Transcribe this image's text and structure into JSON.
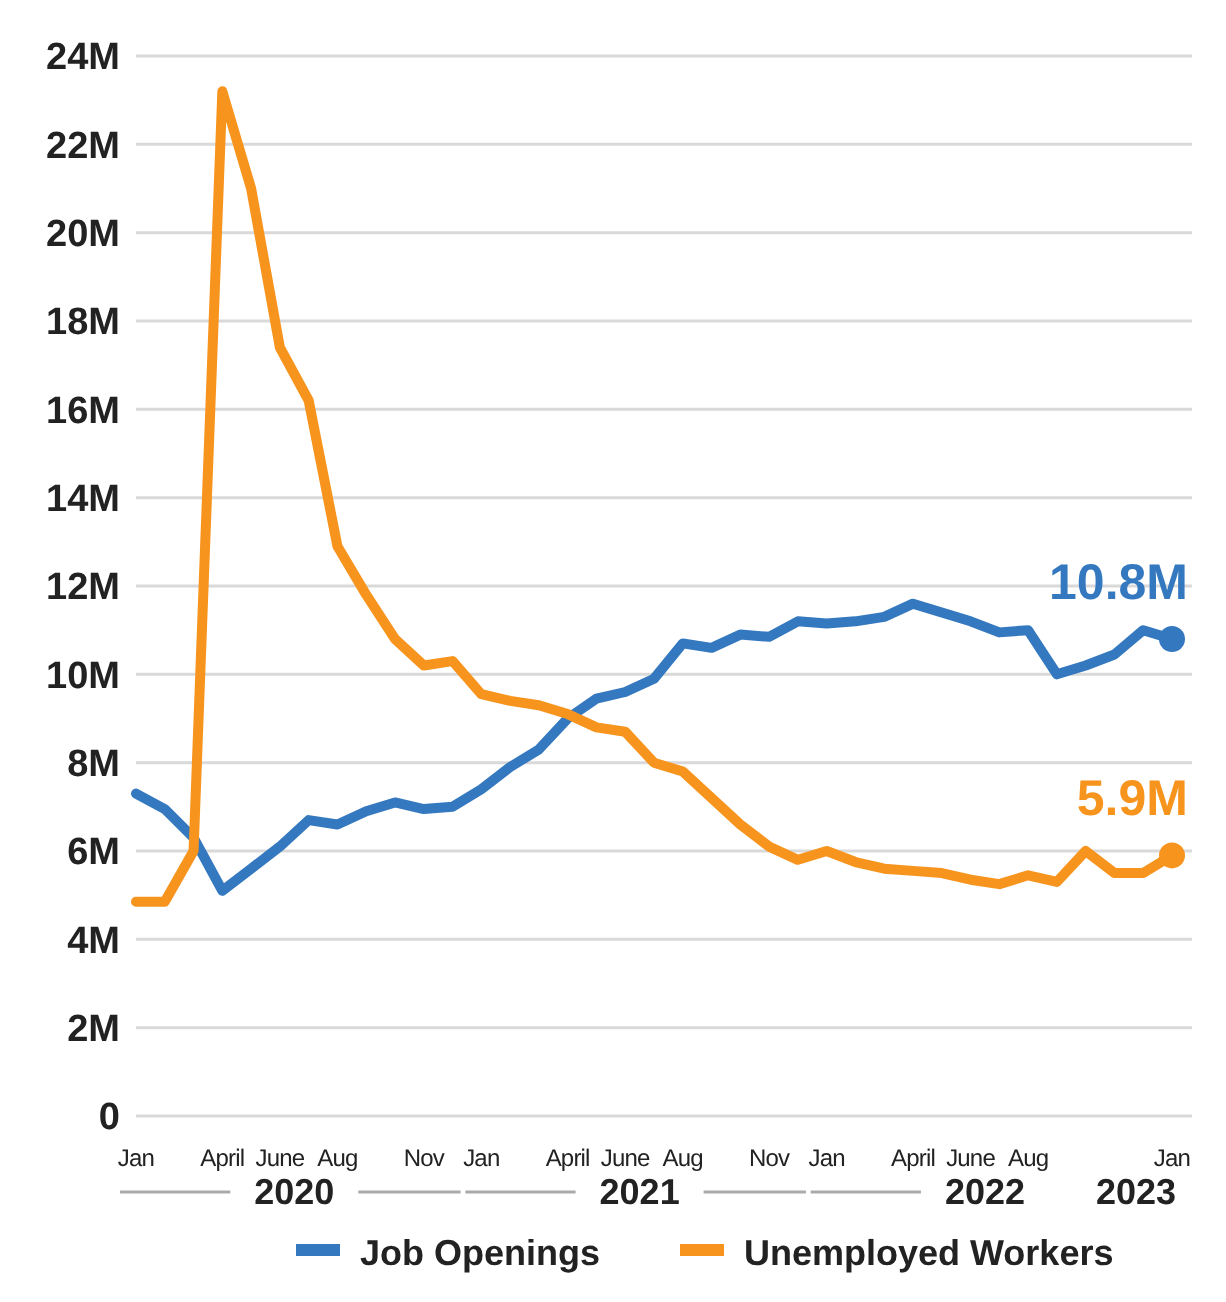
{
  "chart_data": {
    "type": "line",
    "categories": [
      "Jan",
      null,
      null,
      "April",
      null,
      "June",
      null,
      "Aug",
      null,
      null,
      "Nov",
      null,
      "Jan",
      null,
      null,
      "April",
      null,
      "June",
      null,
      "Aug",
      null,
      null,
      "Nov",
      null,
      "Jan",
      null,
      null,
      "April",
      null,
      "June",
      null,
      "Aug",
      null,
      null,
      null,
      null,
      "Jan"
    ],
    "series": [
      {
        "name": "Job Openings",
        "color": "#3478bf",
        "values": [
          7.3,
          6.95,
          6.3,
          5.1,
          5.6,
          6.1,
          6.7,
          6.6,
          6.9,
          7.1,
          6.95,
          7.0,
          7.4,
          7.9,
          8.3,
          9.0,
          9.45,
          9.6,
          9.9,
          10.7,
          10.6,
          10.9,
          10.85,
          11.2,
          11.15,
          11.2,
          11.3,
          11.6,
          11.4,
          11.2,
          10.95,
          11.0,
          10.0,
          10.2,
          10.45,
          11.0,
          10.8
        ],
        "value_labels": [
          null,
          null,
          null,
          null,
          null,
          null,
          null,
          null,
          null,
          null,
          null,
          null,
          null,
          null,
          null,
          null,
          null,
          null,
          null,
          null,
          null,
          null,
          null,
          null,
          null,
          null,
          null,
          null,
          null,
          null,
          null,
          null,
          null,
          null,
          null,
          null,
          "10.8M"
        ]
      },
      {
        "name": "Unemployed Workers",
        "color": "#f7941d",
        "values": [
          4.85,
          4.85,
          6.0,
          23.2,
          21.0,
          17.4,
          16.2,
          12.9,
          11.8,
          10.8,
          10.2,
          10.3,
          9.55,
          9.4,
          9.3,
          9.1,
          8.8,
          8.7,
          8.0,
          7.8,
          7.2,
          6.6,
          6.1,
          5.8,
          6.0,
          5.75,
          5.6,
          5.55,
          5.5,
          5.35,
          5.25,
          5.45,
          5.3,
          6.0,
          5.5,
          5.5,
          5.9
        ],
        "value_labels": [
          null,
          null,
          null,
          null,
          null,
          null,
          null,
          null,
          null,
          null,
          null,
          null,
          null,
          null,
          null,
          null,
          null,
          null,
          null,
          null,
          null,
          null,
          null,
          null,
          null,
          null,
          null,
          null,
          null,
          null,
          null,
          null,
          null,
          null,
          null,
          null,
          "5.9M"
        ]
      }
    ],
    "ylim": [
      0,
      24
    ],
    "yticks": [
      0,
      {
        "value": 2,
        "label": "2M"
      },
      {
        "value": 4,
        "label": "4M"
      },
      {
        "value": 6,
        "label": "6M"
      },
      {
        "value": 8,
        "label": "8M"
      },
      {
        "value": 10,
        "label": "10M"
      },
      {
        "value": 12,
        "label": "12M"
      },
      {
        "value": 14,
        "label": "14M"
      },
      {
        "value": 16,
        "label": "16M"
      },
      {
        "value": 18,
        "label": "18M"
      },
      {
        "value": 20,
        "label": "20M"
      },
      {
        "value": 22,
        "label": "22M"
      },
      {
        "value": 24,
        "label": "24M"
      }
    ],
    "grid": "y",
    "legend": "bottom",
    "marker": "none",
    "line_style": "solid",
    "annotations": [
      "2020",
      "2021",
      "2022",
      "2023"
    ]
  }
}
